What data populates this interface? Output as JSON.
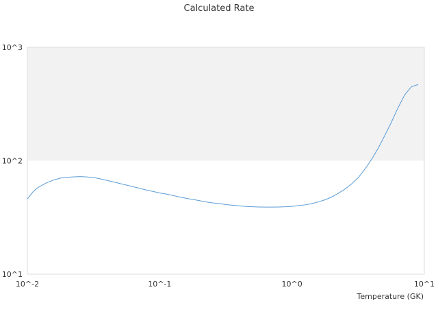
{
  "chart_data": {
    "type": "line",
    "title": "Calculated Rate",
    "xlabel": "Temperature (GK)",
    "ylabel": "",
    "x_scale": "log",
    "y_scale": "log",
    "xlim": [
      0.01,
      10
    ],
    "ylim": [
      10,
      1000
    ],
    "x_ticks": [
      {
        "value": 0.01,
        "label": "10^-2"
      },
      {
        "value": 0.1,
        "label": "10^-1"
      },
      {
        "value": 1,
        "label": "10^0"
      },
      {
        "value": 10,
        "label": "10^1"
      }
    ],
    "y_ticks": [
      {
        "value": 10,
        "label": "10^1"
      },
      {
        "value": 100,
        "label": "10^2"
      },
      {
        "value": 1000,
        "label": "10^3"
      }
    ],
    "band_colors": [
      "#f2f2f2",
      "#ffffff"
    ],
    "grid": false,
    "legend": "none",
    "series": [
      {
        "color": "#5b9bd5",
        "x": [
          0.01,
          0.011,
          0.012,
          0.014,
          0.016,
          0.018,
          0.02,
          0.022,
          0.025,
          0.028,
          0.032,
          0.036,
          0.04,
          0.045,
          0.05,
          0.056,
          0.063,
          0.071,
          0.08,
          0.09,
          0.1,
          0.11,
          0.125,
          0.14,
          0.16,
          0.18,
          0.2,
          0.22,
          0.25,
          0.28,
          0.32,
          0.36,
          0.4,
          0.45,
          0.5,
          0.56,
          0.63,
          0.71,
          0.8,
          0.9,
          1.0,
          1.1,
          1.25,
          1.4,
          1.6,
          1.8,
          2.0,
          2.2,
          2.5,
          2.8,
          3.2,
          3.6,
          4.0,
          4.5,
          5.0,
          5.6,
          6.3,
          7.1,
          8.0,
          9.0
        ],
        "y": [
          46,
          53,
          58,
          64,
          68,
          70.5,
          71.5,
          72,
          72.5,
          72,
          71,
          69,
          67,
          65,
          63,
          61,
          59,
          57,
          55,
          53.5,
          52,
          51,
          49.5,
          48,
          46.5,
          45.5,
          44.5,
          43.5,
          42.5,
          42,
          41,
          40.5,
          40,
          39.5,
          39.3,
          39.1,
          39,
          39,
          39.1,
          39.3,
          39.6,
          40.1,
          40.8,
          41.8,
          43.5,
          45.5,
          48,
          51,
          56,
          62,
          72,
          86,
          103,
          130,
          165,
          215,
          290,
          380,
          450,
          470
        ]
      }
    ]
  }
}
